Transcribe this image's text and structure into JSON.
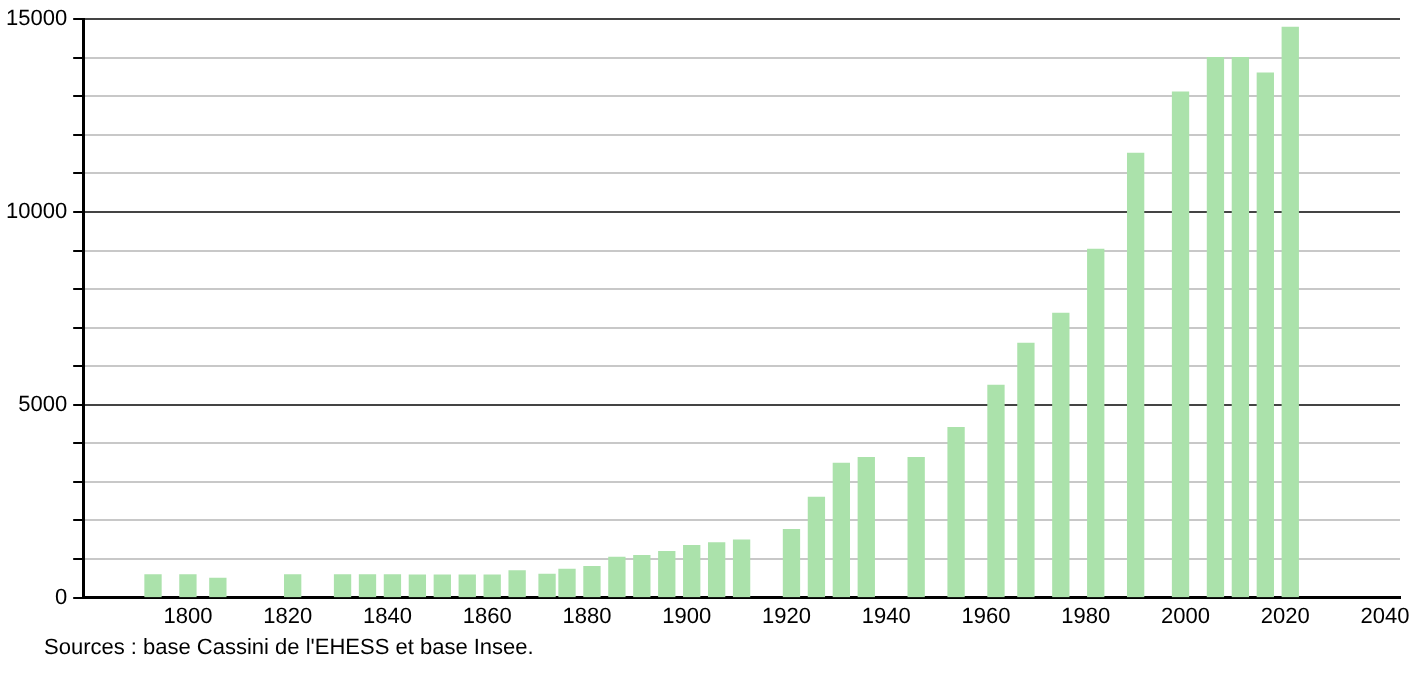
{
  "chart_data": {
    "type": "bar",
    "x": [
      1793,
      1800,
      1806,
      1821,
      1831,
      1836,
      1841,
      1846,
      1851,
      1856,
      1861,
      1866,
      1872,
      1876,
      1881,
      1886,
      1891,
      1896,
      1901,
      1906,
      1911,
      1921,
      1926,
      1931,
      1936,
      1946,
      1954,
      1962,
      1968,
      1975,
      1982,
      1990,
      1999,
      2006,
      2011,
      2016,
      2021
    ],
    "values": [
      590,
      590,
      500,
      590,
      590,
      590,
      590,
      580,
      580,
      580,
      580,
      690,
      600,
      730,
      800,
      1040,
      1090,
      1190,
      1350,
      1420,
      1490,
      1760,
      2600,
      3480,
      3630,
      3630,
      4410,
      5500,
      6590,
      7370,
      9030,
      11520,
      13110,
      14000,
      14000,
      13600,
      14790
    ],
    "color": "#abe2ab",
    "xlim": [
      1779,
      2043
    ],
    "xticks": [
      1800,
      1820,
      1840,
      1860,
      1880,
      1900,
      1920,
      1940,
      1960,
      1980,
      2000,
      2020,
      2040
    ],
    "ylim": [
      0,
      15000
    ],
    "yticks": [
      0,
      {
        "value": 1000,
        "label": null
      },
      {
        "value": 2000,
        "label": null
      },
      {
        "value": 3000,
        "label": null
      },
      {
        "value": 4000,
        "label": null
      },
      5000,
      {
        "value": 6000,
        "label": null
      },
      {
        "value": 7000,
        "label": null
      },
      {
        "value": 8000,
        "label": null
      },
      {
        "value": 9000,
        "label": null
      },
      10000,
      {
        "value": 11000,
        "label": null
      },
      {
        "value": 12000,
        "label": null
      },
      {
        "value": 13000,
        "label": null
      },
      {
        "value": 14000,
        "label": null
      },
      15000
    ],
    "grid": "y",
    "legend": false,
    "annotations": [
      "Sources : base Cassini de l'EHESS et base Insee."
    ]
  }
}
